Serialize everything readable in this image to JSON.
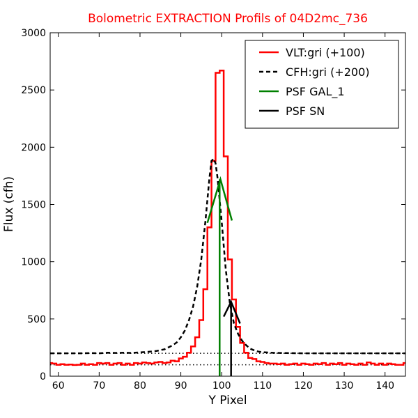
{
  "chart_data": {
    "type": "line",
    "title": "Bolometric EXTRACTION Profils of 04D2mc_736",
    "title_color": "#ff0000",
    "xlabel": "Y Pixel",
    "ylabel": "Flux (cfh)",
    "xlim": [
      58,
      145
    ],
    "ylim": [
      0,
      3000
    ],
    "xticks": [
      60,
      70,
      80,
      90,
      100,
      110,
      120,
      130,
      140
    ],
    "xtick_labels": [
      "60",
      "70",
      "80",
      "90",
      "100",
      "110",
      "120",
      "130",
      "140"
    ],
    "yticks": [
      0,
      500,
      1000,
      1500,
      2000,
      2500,
      3000
    ],
    "ytick_labels": [
      "0",
      "500",
      "1000",
      "1500",
      "2000",
      "2500",
      "3000"
    ],
    "grid": false,
    "legend_position": "top-right",
    "series": [
      {
        "name": "VLT:gri (+100)",
        "color": "#ff0000",
        "style": "steps",
        "x": [
          58,
          59,
          60,
          61,
          62,
          63,
          64,
          65,
          66,
          67,
          68,
          69,
          70,
          71,
          72,
          73,
          74,
          75,
          76,
          77,
          78,
          79,
          80,
          81,
          82,
          83,
          84,
          85,
          86,
          87,
          88,
          89,
          90,
          91,
          92,
          93,
          94,
          95,
          96,
          97,
          98,
          99,
          100,
          101,
          102,
          103,
          104,
          105,
          106,
          107,
          108,
          109,
          110,
          111,
          112,
          113,
          114,
          115,
          116,
          117,
          118,
          119,
          120,
          121,
          122,
          123,
          124,
          125,
          126,
          127,
          128,
          129,
          130,
          131,
          132,
          133,
          134,
          135,
          136,
          137,
          138,
          139,
          140,
          141,
          142,
          143,
          144,
          145
        ],
        "values": [
          115,
          110,
          100,
          105,
          100,
          102,
          98,
          100,
          110,
          100,
          105,
          100,
          115,
          110,
          115,
          100,
          110,
          115,
          100,
          110,
          100,
          115,
          110,
          120,
          115,
          110,
          120,
          125,
          115,
          120,
          135,
          130,
          155,
          170,
          205,
          260,
          340,
          490,
          760,
          1300,
          1880,
          2650,
          2670,
          1920,
          1020,
          670,
          430,
          290,
          205,
          160,
          150,
          130,
          125,
          115,
          110,
          110,
          105,
          110,
          100,
          105,
          110,
          100,
          110,
          105,
          100,
          110,
          105,
          115,
          100,
          110,
          105,
          115,
          100,
          110,
          105,
          100,
          110,
          100,
          120,
          110,
          100,
          110,
          100,
          110,
          105,
          100,
          100,
          115
        ]
      },
      {
        "name": "CFH:gri (+200)",
        "color": "#000000",
        "style": "dashed",
        "x": [
          58,
          60,
          62,
          64,
          66,
          68,
          70,
          72,
          74,
          76,
          78,
          80,
          82,
          84,
          86,
          88,
          89,
          90,
          91,
          92,
          93,
          94,
          95,
          96,
          97,
          97.5,
          98,
          98.5,
          99,
          100,
          101,
          102,
          103,
          104,
          105,
          106,
          107,
          108,
          109,
          110,
          112,
          114,
          116,
          118,
          120,
          125,
          130,
          135,
          140,
          145
        ],
        "values": [
          200,
          200,
          200,
          200,
          200,
          202,
          200,
          205,
          203,
          205,
          203,
          208,
          213,
          220,
          235,
          270,
          295,
          340,
          400,
          490,
          610,
          780,
          1020,
          1350,
          1730,
          1880,
          1900,
          1860,
          1730,
          1350,
          930,
          640,
          460,
          370,
          310,
          270,
          240,
          225,
          215,
          210,
          205,
          203,
          202,
          201,
          200,
          200,
          200,
          200,
          200,
          200
        ]
      },
      {
        "name": "PSF GAL_1",
        "color": "#008000",
        "style": "solid",
        "x": [
          96.5,
          99.7,
          102.5
        ],
        "values": [
          1340,
          1720,
          1360
        ]
      },
      {
        "name": "PSF SN",
        "color": "#000000",
        "style": "solid",
        "x": [
          100.5,
          102.3,
          104.5
        ],
        "values": [
          520,
          650,
          460
        ]
      }
    ],
    "vertical_lines": [
      {
        "x": 99.5,
        "y_from": 0,
        "y_to": 1720,
        "color": "#008000"
      },
      {
        "x": 102.3,
        "y_from": 0,
        "y_to": 650,
        "color": "#000000"
      }
    ],
    "reference_lines": [
      {
        "y": 200,
        "style": "dotted",
        "color": "#000000"
      },
      {
        "y": 100,
        "style": "dotted",
        "color": "#000000"
      }
    ]
  }
}
